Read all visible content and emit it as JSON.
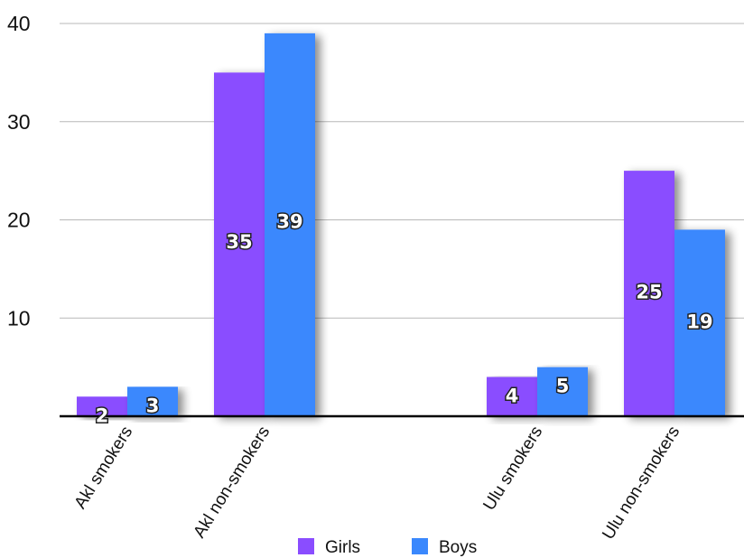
{
  "chart_data": {
    "type": "bar",
    "title": "",
    "xlabel": "",
    "ylabel": "",
    "categories": [
      "Akl smokers",
      "Akl non-smokers",
      "Ulu smokers",
      "Ulu non-smokers"
    ],
    "series": [
      {
        "name": "Girls",
        "color": "#8a4dff",
        "values": [
          2,
          35,
          4,
          25
        ]
      },
      {
        "name": "Boys",
        "color": "#3a88fd",
        "values": [
          3,
          39,
          5,
          19
        ]
      }
    ],
    "ylim": [
      0,
      40
    ],
    "yticks": [
      10,
      20,
      30,
      40
    ],
    "grid": true,
    "legend": "bottom",
    "data_labels": true
  }
}
